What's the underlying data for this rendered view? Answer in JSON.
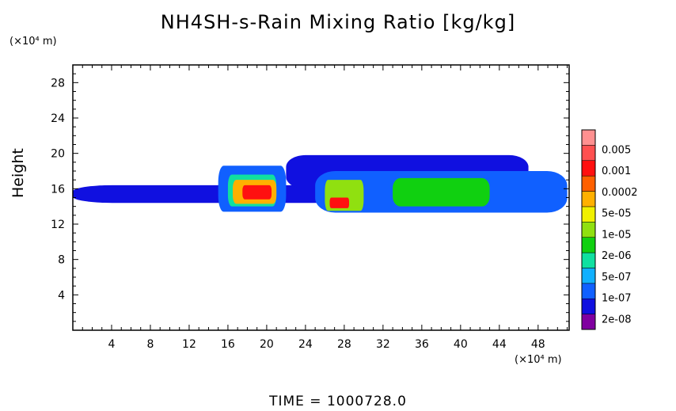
{
  "title": "NH4SH-s-Rain Mixing Ratio [kg/kg]",
  "y_unit": "(×10⁴ m)",
  "x_unit": "(×10⁴ m)",
  "ylabel": "Height",
  "time_label": "TIME = 1000728.0",
  "colorbar": {
    "colors": [
      "#8000a0",
      "#1010e0",
      "#1060ff",
      "#10b0ff",
      "#10e0a0",
      "#10d010",
      "#90e010",
      "#f0f000",
      "#ffb000",
      "#ff6000",
      "#ff1010",
      "#ff5050",
      "#ff9090"
    ],
    "labels": [
      "2e-08",
      "1e-07",
      "5e-07",
      "2e-06",
      "1e-05",
      "5e-05",
      "0.0002",
      "0.001",
      "0.005"
    ]
  },
  "chart_data": {
    "type": "heatmap",
    "title": "NH4SH-s-Rain Mixing Ratio [kg/kg]",
    "xlabel": "(×10⁴ m)",
    "ylabel": "Height",
    "xlim": [
      0,
      51.2
    ],
    "ylim": [
      0,
      30
    ],
    "x_ticks": [
      4,
      8,
      12,
      16,
      20,
      24,
      28,
      32,
      36,
      40,
      44,
      48
    ],
    "y_ticks": [
      4,
      8,
      12,
      16,
      20,
      24,
      28
    ],
    "regions": [
      {
        "x0": 0,
        "x1": 51,
        "y0": 14.4,
        "y1": 16.4,
        "level": 1
      },
      {
        "x0": 22,
        "x1": 47,
        "y0": 16,
        "y1": 19.8,
        "level": 1
      },
      {
        "x0": 15,
        "x1": 22,
        "y0": 13.4,
        "y1": 18.6,
        "level": 2
      },
      {
        "x0": 25,
        "x1": 51,
        "y0": 13.3,
        "y1": 18,
        "level": 2
      },
      {
        "x0": 16,
        "x1": 21,
        "y0": 14,
        "y1": 17.6,
        "level": 4
      },
      {
        "x0": 26,
        "x1": 30,
        "y0": 13.5,
        "y1": 17,
        "level": 6
      },
      {
        "x0": 33,
        "x1": 43,
        "y0": 14,
        "y1": 17.2,
        "level": 5
      },
      {
        "x0": 16.5,
        "x1": 21,
        "y0": 14.3,
        "y1": 17,
        "level": 8
      },
      {
        "x0": 17.5,
        "x1": 20.5,
        "y0": 14.8,
        "y1": 16.4,
        "level": 10
      },
      {
        "x0": 26.5,
        "x1": 28.5,
        "y0": 13.8,
        "y1": 15,
        "level": 10
      }
    ]
  }
}
